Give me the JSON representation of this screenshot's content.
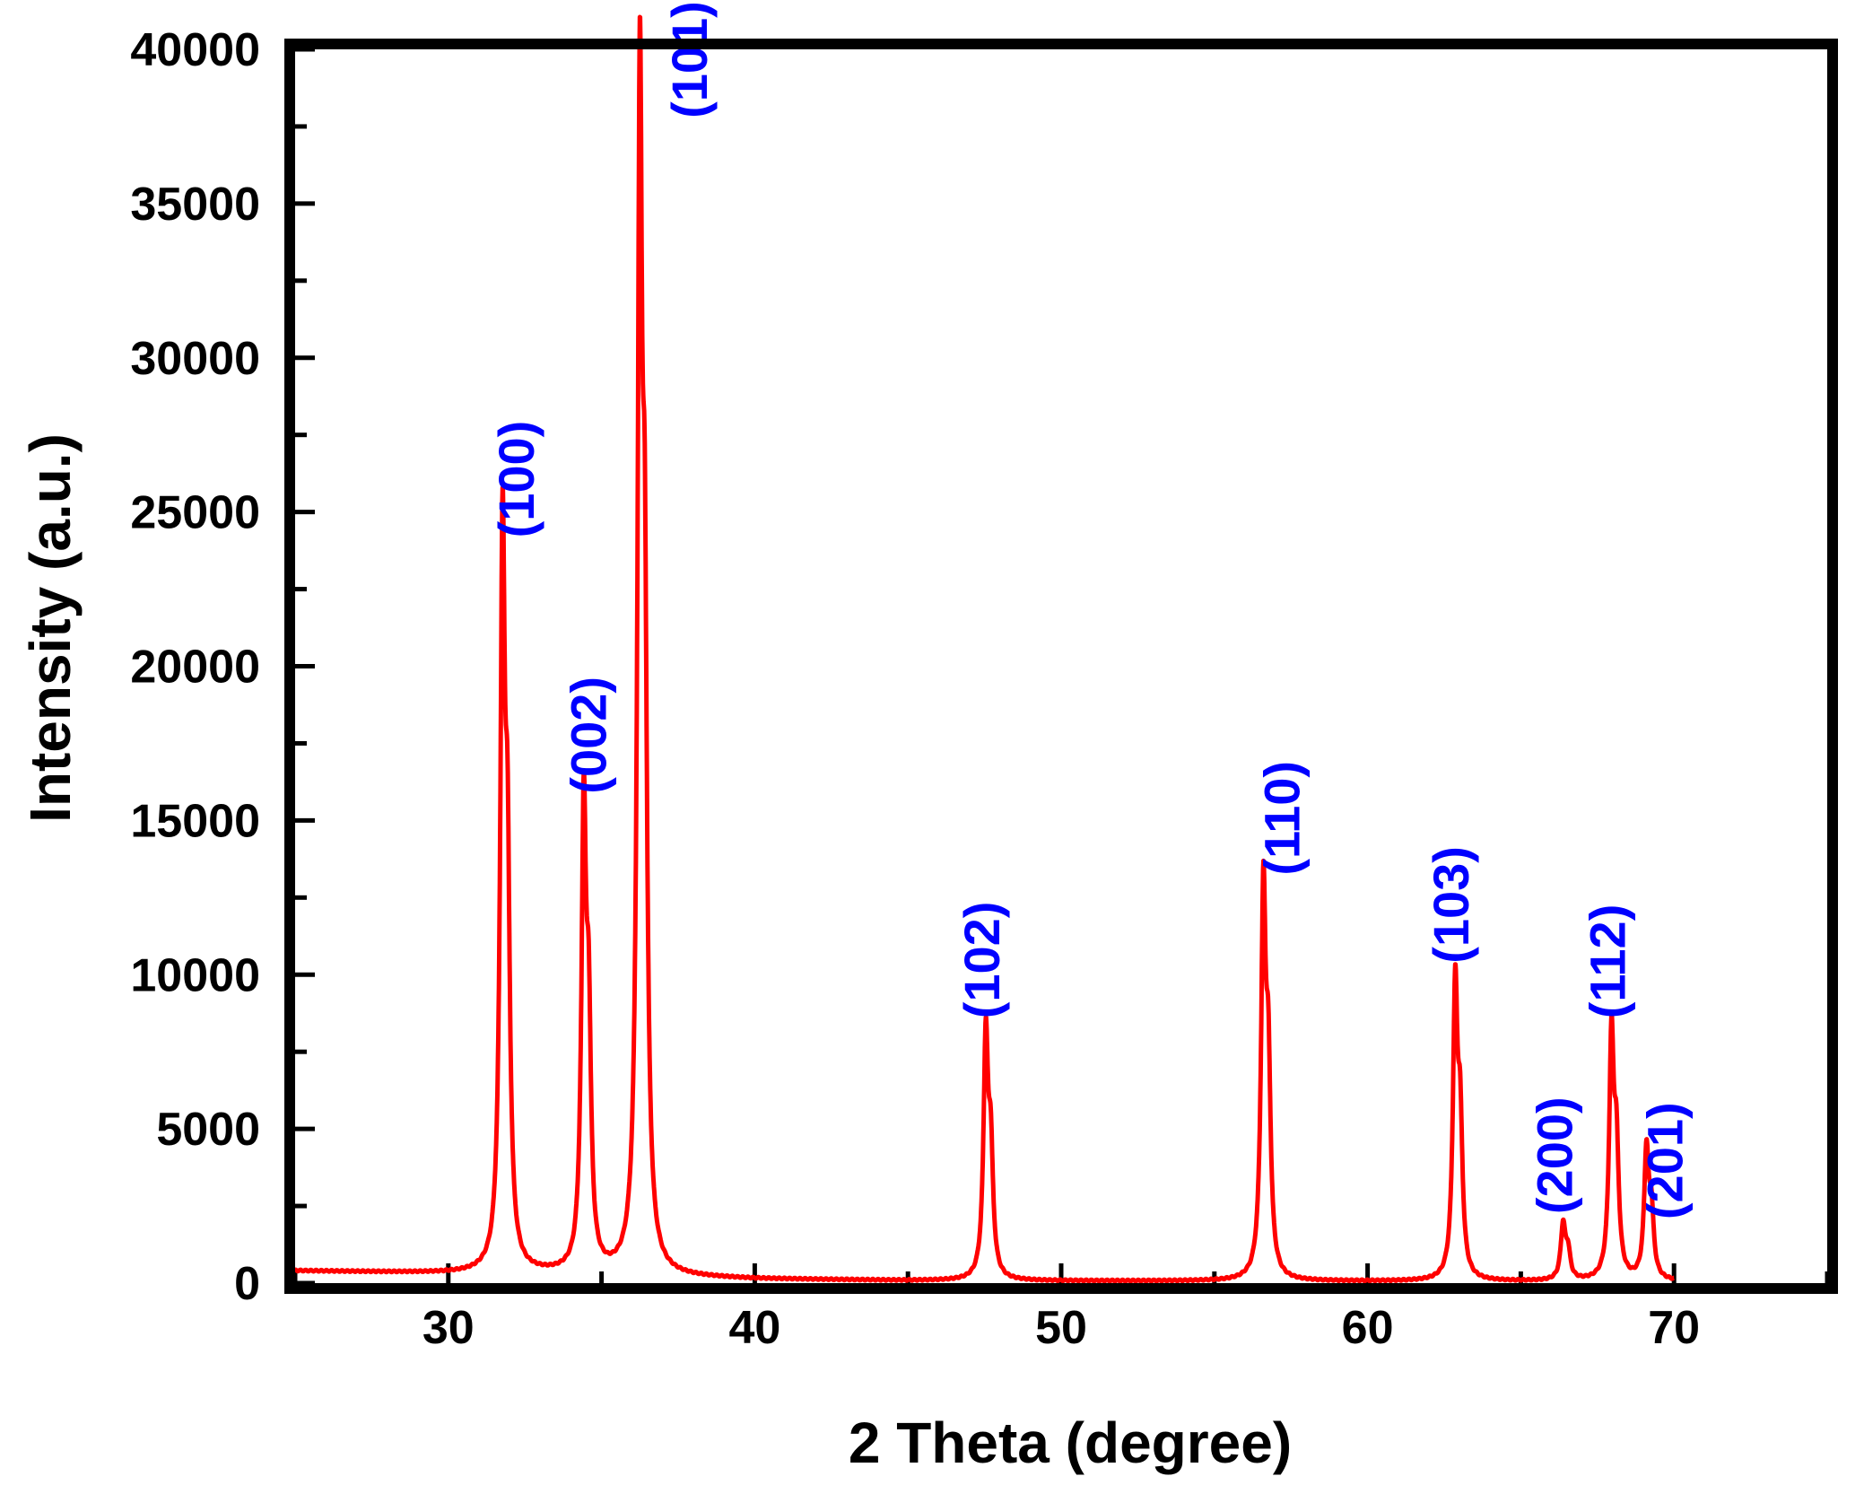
{
  "chart_data": {
    "type": "line",
    "title": "",
    "xlabel": "2 Theta (degree)",
    "ylabel": "Intensity (a.u.)",
    "xlim": [
      25,
      75
    ],
    "ylim": [
      0,
      40000
    ],
    "x_ticks": [
      30,
      40,
      50,
      60,
      70
    ],
    "x_tick_labels": [
      "30",
      "40",
      "50",
      "60",
      "70"
    ],
    "y_ticks": [
      0,
      5000,
      10000,
      15000,
      20000,
      25000,
      30000,
      35000,
      40000
    ],
    "y_tick_labels": [
      "0",
      "5000",
      "10000",
      "15000",
      "20000",
      "25000",
      "30000",
      "35000",
      "40000"
    ],
    "grid": false,
    "line_color": "#ff0000",
    "label_color": "#0000ff",
    "x_range": [
      25,
      70
    ],
    "baseline": [
      [
        25,
        400
      ],
      [
        30,
        320
      ],
      [
        33,
        300
      ],
      [
        35,
        260
      ],
      [
        37,
        200
      ],
      [
        40,
        130
      ],
      [
        45,
        80
      ],
      [
        50,
        70
      ],
      [
        55,
        65
      ],
      [
        60,
        60
      ],
      [
        65,
        55
      ],
      [
        70,
        50
      ]
    ],
    "peaks": [
      {
        "x": 31.77,
        "y": 23000,
        "hkl": "(100)"
      },
      {
        "x": 34.42,
        "y": 14700,
        "hkl": "(002)"
      },
      {
        "x": 36.25,
        "y": 36600,
        "hkl": "(101)"
      },
      {
        "x": 47.54,
        "y": 7700,
        "hkl": "(102)"
      },
      {
        "x": 56.6,
        "y": 12200,
        "hkl": "(110)"
      },
      {
        "x": 62.86,
        "y": 9200,
        "hkl": "(103)"
      },
      {
        "x": 66.38,
        "y": 1800,
        "hkl": "(200)"
      },
      {
        "x": 67.96,
        "y": 7700,
        "hkl": "(112)"
      },
      {
        "x": 69.1,
        "y": 4100,
        "hkl": "(201)"
      }
    ]
  }
}
